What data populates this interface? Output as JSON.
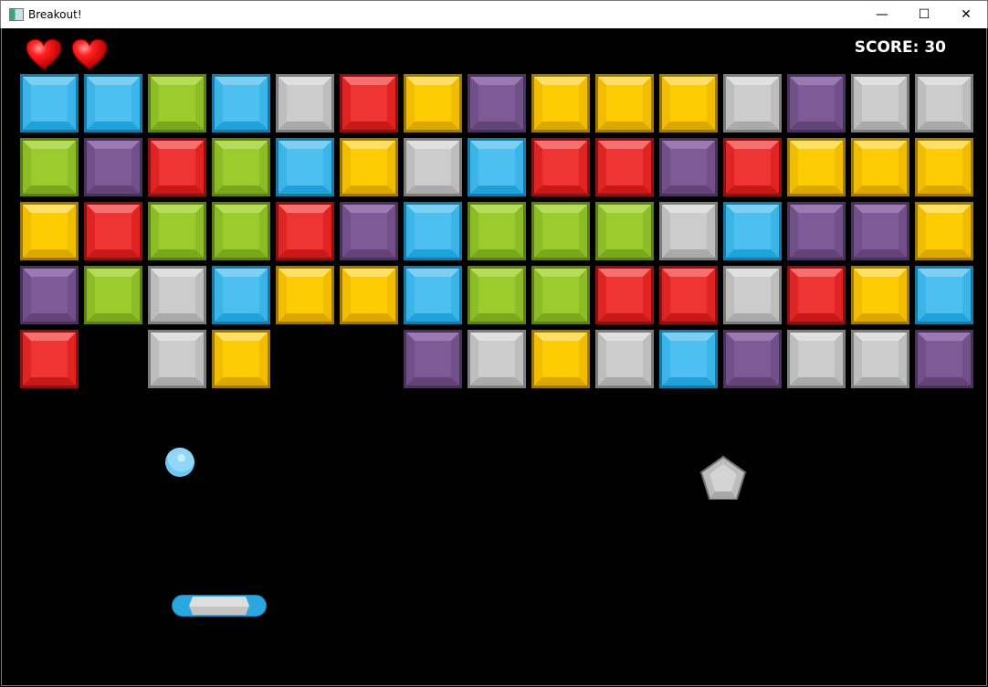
{
  "window": {
    "title": "Breakout!",
    "minimize": "—",
    "maximize": "☐",
    "close": "✕"
  },
  "hud": {
    "score_label": "SCORE: 30",
    "lives": 2,
    "life_icon": "heart-icon"
  },
  "palette": {
    "blue": {
      "c": "#4dbff0",
      "t": "#7dd0f4",
      "s": "#3bb4e8",
      "b": "#1ea2dc",
      "d": "#177aa6"
    },
    "green": {
      "c": "#9ccb2e",
      "t": "#b6dc5a",
      "s": "#8dbd26",
      "b": "#7aa81c",
      "d": "#5d7f16"
    },
    "gray": {
      "c": "#cccccc",
      "t": "#e0e0e0",
      "s": "#bdbdbd",
      "b": "#aaaaaa",
      "d": "#7d7d7d"
    },
    "red": {
      "c": "#ef3434",
      "t": "#f67070",
      "s": "#e02424",
      "b": "#c81818",
      "d": "#8e1010"
    },
    "yellow": {
      "c": "#fdcc02",
      "t": "#fee066",
      "s": "#f2bd00",
      "b": "#dca800",
      "d": "#9e7a00"
    },
    "purple": {
      "c": "#7e5a96",
      "t": "#9a7ab0",
      "s": "#714f88",
      "b": "#634378",
      "d": "#4a3159"
    }
  },
  "bricks": [
    [
      "blue",
      "blue",
      "green",
      "blue",
      "gray",
      "red",
      "yellow",
      "purple",
      "yellow",
      "yellow",
      "yellow",
      "gray",
      "purple",
      "gray",
      "gray"
    ],
    [
      "green",
      "purple",
      "red",
      "green",
      "blue",
      "yellow",
      "gray",
      "blue",
      "red",
      "red",
      "purple",
      "red",
      "yellow",
      "yellow",
      "yellow"
    ],
    [
      "yellow",
      "red",
      "green",
      "green",
      "red",
      "purple",
      "blue",
      "green",
      "green",
      "green",
      "gray",
      "blue",
      "purple",
      "purple",
      "yellow"
    ],
    [
      "purple",
      "green",
      "gray",
      "blue",
      "yellow",
      "yellow",
      "blue",
      "green",
      "green",
      "red",
      "red",
      "gray",
      "red",
      "yellow",
      "blue"
    ],
    [
      "red",
      null,
      "gray",
      "yellow",
      null,
      null,
      "purple",
      "gray",
      "yellow",
      "gray",
      "blue",
      "purple",
      "gray",
      "gray",
      "purple"
    ]
  ],
  "objects": {
    "ball": "ball",
    "paddle": "paddle",
    "powerup": "gray-pentagon-gem"
  }
}
